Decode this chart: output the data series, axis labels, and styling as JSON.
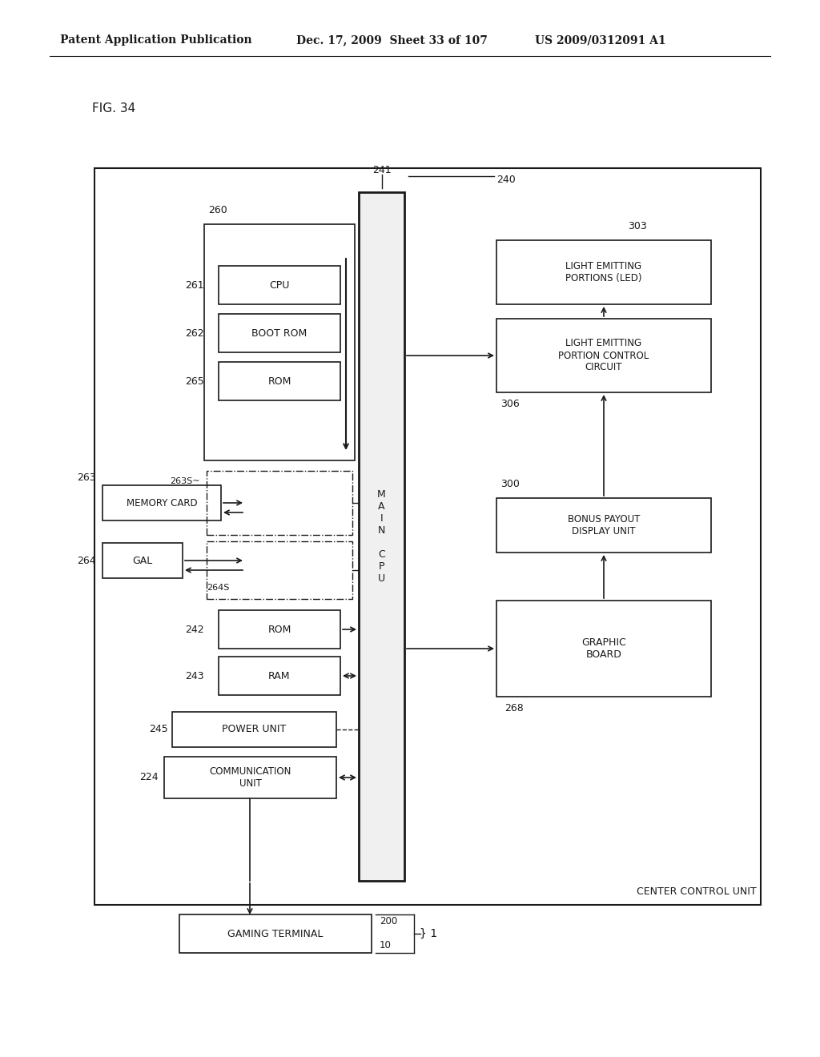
{
  "header_left": "Patent Application Publication",
  "header_mid": "Dec. 17, 2009  Sheet 33 of 107",
  "header_right": "US 2009/0312091 A1",
  "fig_label": "FIG. 34",
  "bg_color": "#ffffff",
  "lc": "#1a1a1a",
  "fc": "#ffffff",
  "ec": "#1a1a1a"
}
